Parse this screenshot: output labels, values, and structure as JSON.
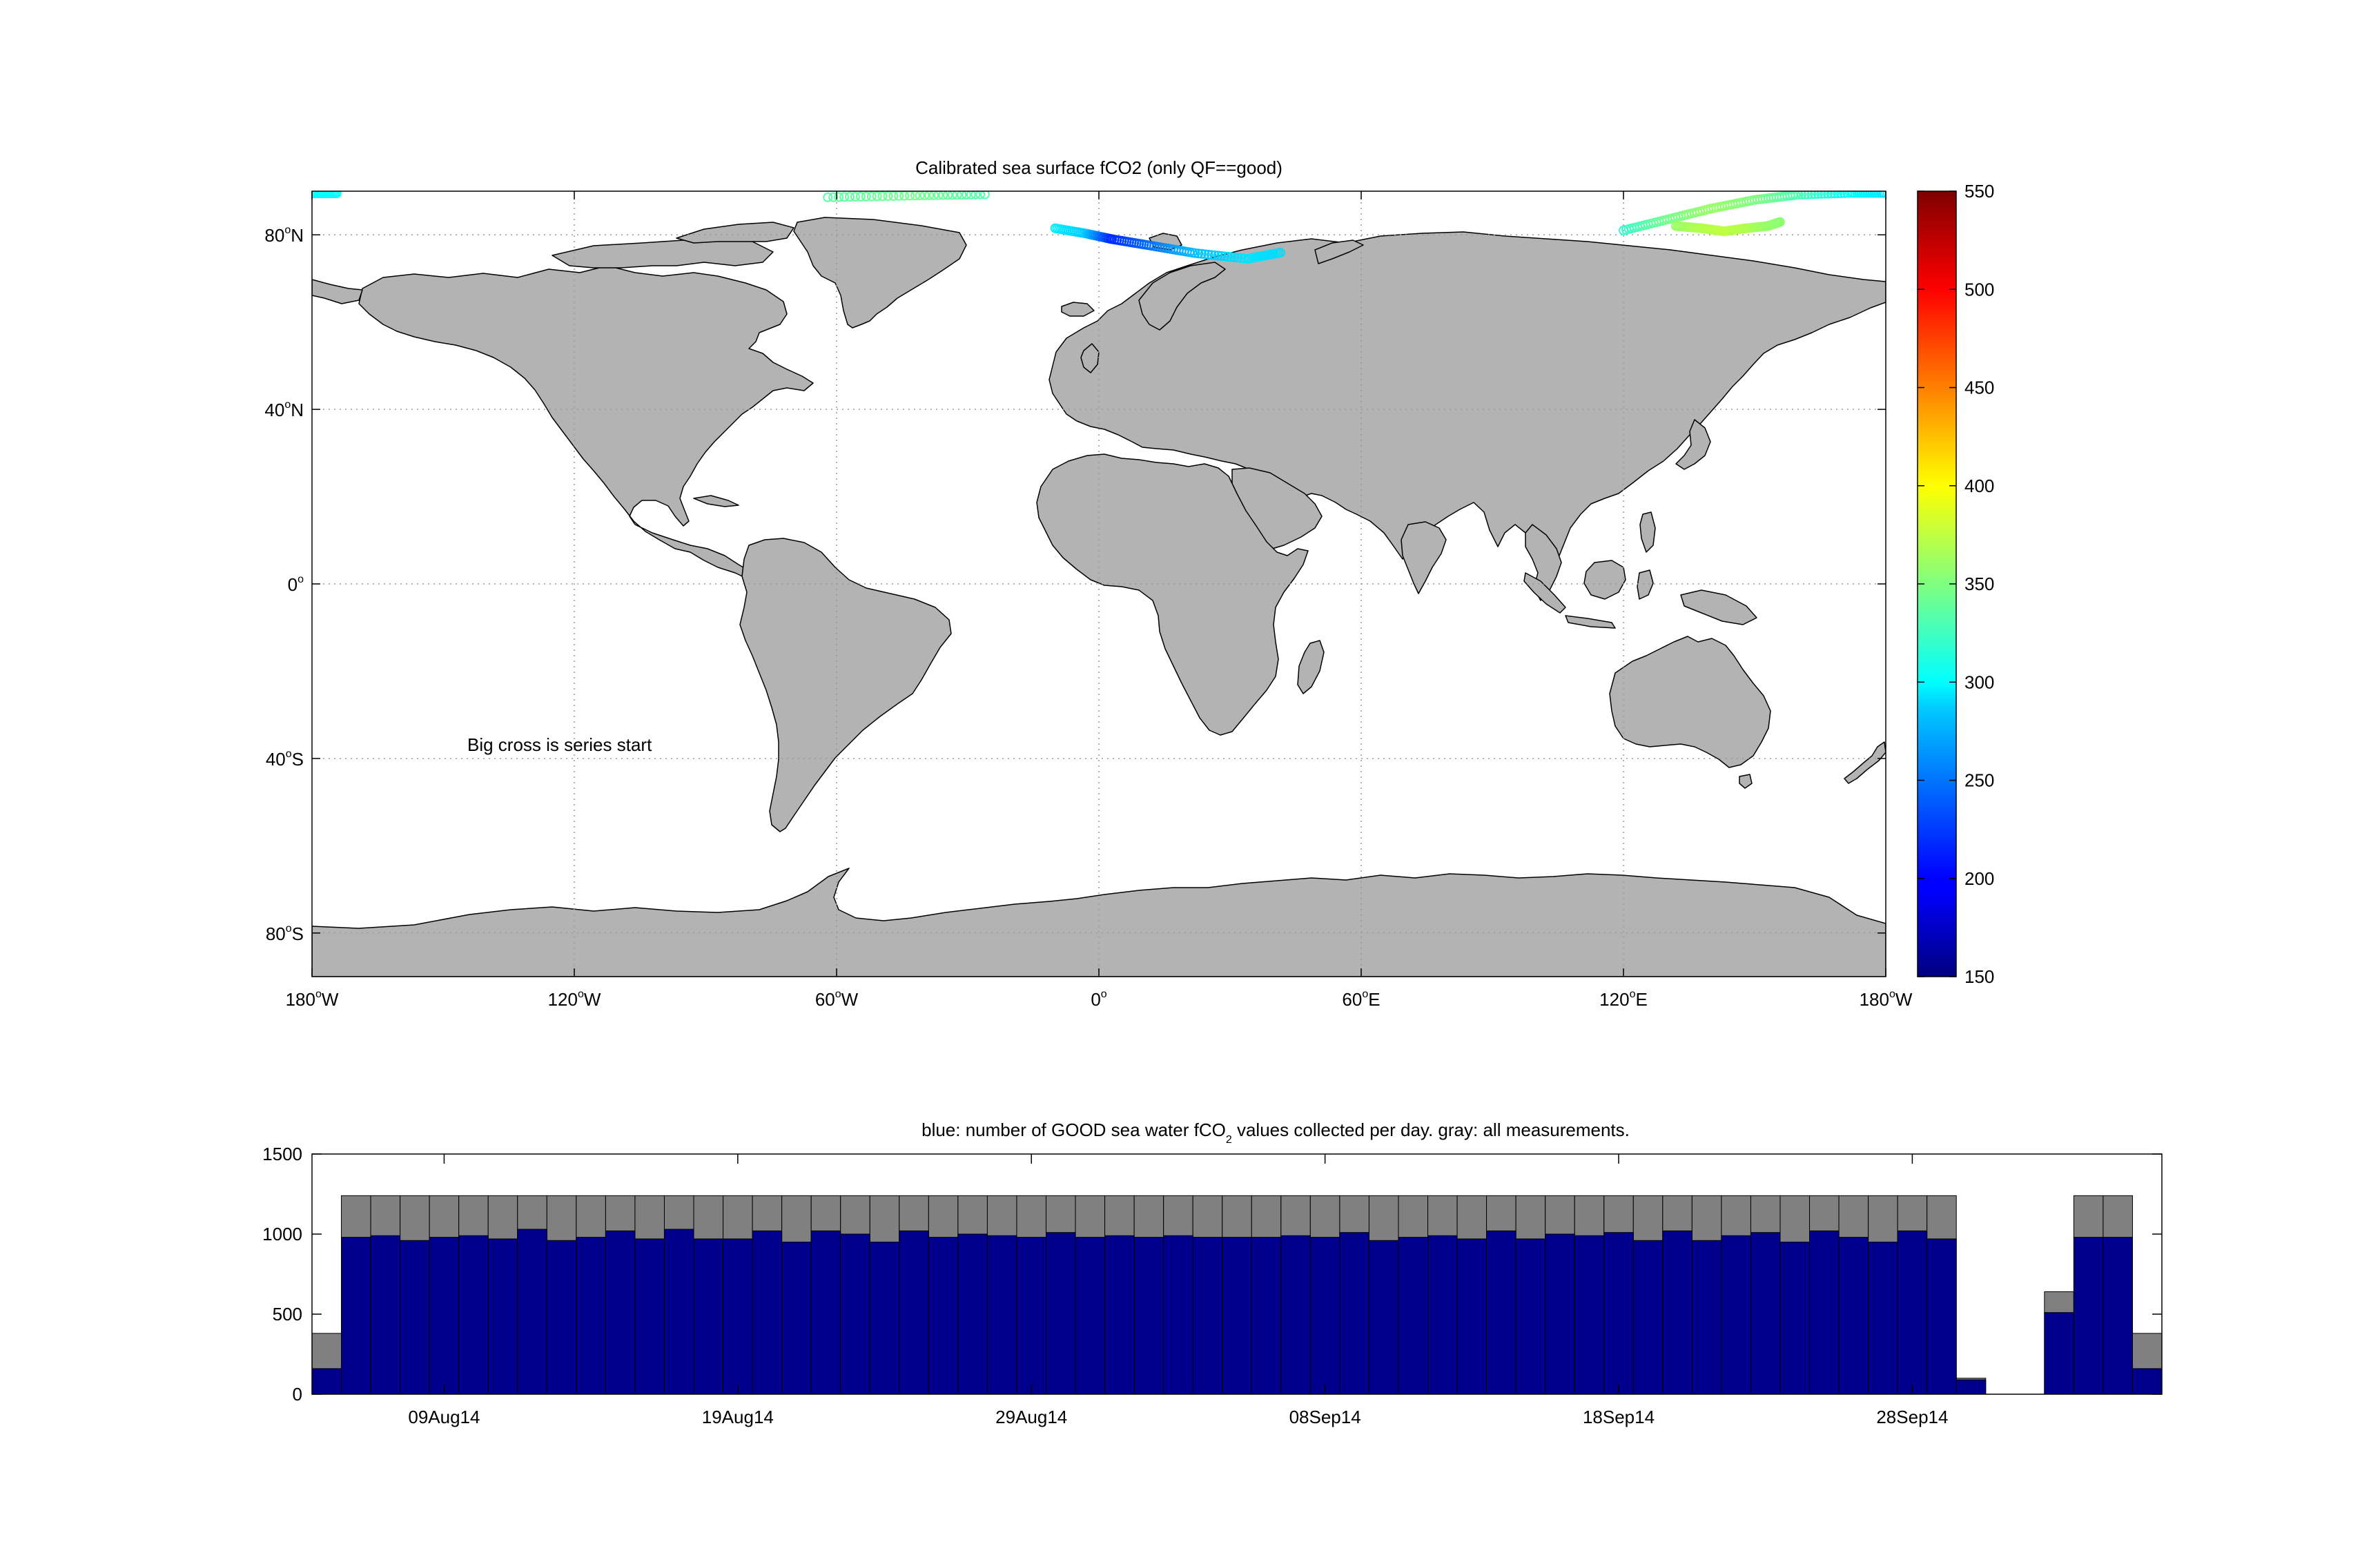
{
  "chart_data": [
    {
      "type": "map",
      "title": "Calibrated sea surface fCO2 (only QF==good)",
      "annotation": "Big cross is series start",
      "x_ticks": [
        {
          "value": -180,
          "num": "180",
          "sup": "o",
          "hemi": "W"
        },
        {
          "value": -120,
          "num": "120",
          "sup": "o",
          "hemi": "W"
        },
        {
          "value": -60,
          "num": "60",
          "sup": "o",
          "hemi": "W"
        },
        {
          "value": 0,
          "num": "0",
          "sup": "o",
          "hemi": ""
        },
        {
          "value": 60,
          "num": "60",
          "sup": "o",
          "hemi": "E"
        },
        {
          "value": 120,
          "num": "120",
          "sup": "o",
          "hemi": "E"
        },
        {
          "value": 180,
          "num": "180",
          "sup": "o",
          "hemi": "W"
        }
      ],
      "y_ticks": [
        {
          "value": 80,
          "num": "80",
          "sup": "o",
          "hemi": "N"
        },
        {
          "value": 40,
          "num": "40",
          "sup": "o",
          "hemi": "N"
        },
        {
          "value": 0,
          "num": "0",
          "sup": "o",
          "hemi": ""
        },
        {
          "value": -40,
          "num": "40",
          "sup": "o",
          "hemi": "S"
        },
        {
          "value": -80,
          "num": "80",
          "sup": "o",
          "hemi": "S"
        }
      ],
      "xlim": [
        -180,
        180
      ],
      "ylim": [
        -90,
        90
      ],
      "grid": true,
      "land_color": "#b3b3b3",
      "colorbar": {
        "colormap": "jet",
        "range": [
          150,
          550
        ],
        "ticks": [
          150,
          200,
          250,
          300,
          350,
          400,
          450,
          500,
          550
        ],
        "tick_labels": [
          "150",
          "200",
          "250",
          "300",
          "350",
          "400",
          "450",
          "500",
          "550"
        ]
      },
      "track_segments": [
        {
          "lon": [
            -180,
            -174
          ],
          "lat": [
            89.5,
            89.5
          ],
          "fco2": [
            300,
            300
          ]
        },
        {
          "lon": [
            -62,
            -42,
            -25
          ],
          "lat": [
            88.6,
            89.0,
            89.3
          ],
          "fco2": [
            335,
            345,
            330
          ]
        },
        {
          "lon": [
            -10,
            -3,
            3,
            12,
            22,
            34,
            42
          ],
          "lat": [
            81.5,
            80.3,
            79.0,
            77.5,
            75.8,
            74.5,
            76.0
          ],
          "fco2": [
            295,
            280,
            215,
            245,
            275,
            290,
            285
          ]
        },
        {
          "lon": [
            120,
            130,
            140,
            150,
            160,
            172,
            180
          ],
          "lat": [
            81.0,
            83.5,
            86.0,
            88.0,
            89.2,
            89.6,
            89.6
          ],
          "fco2": [
            320,
            345,
            360,
            350,
            330,
            300,
            290
          ]
        },
        {
          "lon": [
            132,
            138,
            143,
            148,
            153,
            156
          ],
          "lat": [
            82.0,
            81.5,
            80.8,
            81.5,
            82.0,
            83.0
          ],
          "fco2": [
            360,
            370,
            375,
            370,
            360,
            355
          ]
        }
      ]
    },
    {
      "type": "bar",
      "title": {
        "before": "blue: number of GOOD sea water fCO",
        "sub": "2",
        "after": " values collected per day. gray: all measurements."
      },
      "x_tick_labels": [
        {
          "day": 4,
          "label": "09Aug14"
        },
        {
          "day": 14,
          "label": "19Aug14"
        },
        {
          "day": 24,
          "label": "29Aug14"
        },
        {
          "day": 34,
          "label": "08Sep14"
        },
        {
          "day": 44,
          "label": "18Sep14"
        },
        {
          "day": 54,
          "label": "28Sep14"
        }
      ],
      "y_ticks": [
        0,
        500,
        1000,
        1500
      ],
      "y_tick_labels": [
        "0",
        "500",
        "1000",
        "1500"
      ],
      "xlim": [
        -0.5,
        62.5
      ],
      "ylim": [
        0,
        1500
      ],
      "grid": false,
      "series": [
        {
          "color": "#808080",
          "values": [
            380,
            1240,
            1240,
            1240,
            1240,
            1240,
            1240,
            1240,
            1240,
            1240,
            1240,
            1240,
            1240,
            1240,
            1240,
            1240,
            1240,
            1240,
            1240,
            1240,
            1240,
            1240,
            1240,
            1240,
            1240,
            1240,
            1240,
            1240,
            1240,
            1240,
            1240,
            1240,
            1240,
            1240,
            1240,
            1240,
            1240,
            1240,
            1240,
            1240,
            1240,
            1240,
            1240,
            1240,
            1240,
            1240,
            1240,
            1240,
            1240,
            1240,
            1240,
            1240,
            1240,
            1240,
            1240,
            1240,
            100,
            0,
            0,
            640,
            1240,
            1240,
            380
          ]
        },
        {
          "color": "#00008c",
          "values": [
            160,
            980,
            990,
            960,
            980,
            990,
            970,
            1030,
            960,
            980,
            1020,
            970,
            1030,
            970,
            970,
            1020,
            950,
            1020,
            1000,
            950,
            1020,
            980,
            1000,
            990,
            980,
            1010,
            980,
            990,
            980,
            990,
            980,
            980,
            980,
            990,
            980,
            1010,
            960,
            980,
            990,
            970,
            1020,
            970,
            1000,
            990,
            1010,
            960,
            1020,
            960,
            990,
            1010,
            950,
            1020,
            980,
            950,
            1020,
            970,
            90,
            0,
            0,
            510,
            980,
            980,
            160
          ]
        }
      ]
    }
  ]
}
